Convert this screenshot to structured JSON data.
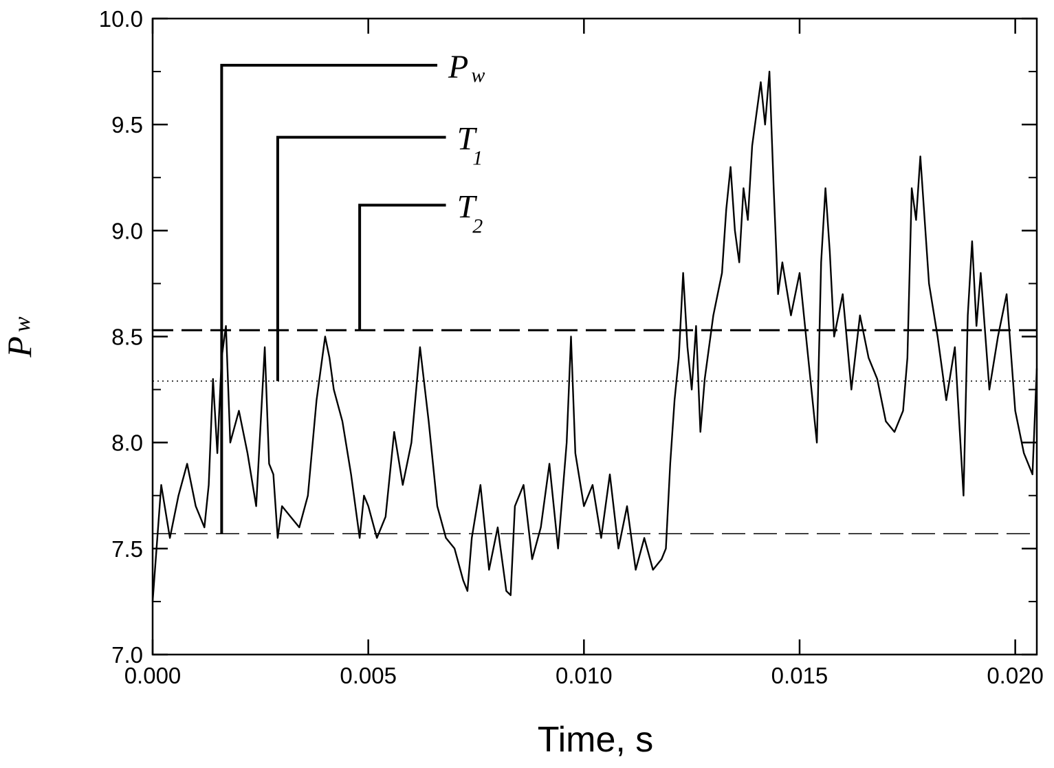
{
  "chart_data": {
    "type": "line",
    "title": "",
    "xlabel": "Time, s",
    "ylabel": {
      "main": "P",
      "sub": "w"
    },
    "xlim": [
      0.0,
      0.0205
    ],
    "ylim": [
      7.0,
      10.0
    ],
    "grid": false,
    "x_ticks": [
      0.0,
      0.005,
      0.01,
      0.015,
      0.02
    ],
    "x_tick_labels": [
      "0.000",
      "0.005",
      "0.010",
      "0.015",
      "0.020"
    ],
    "y_ticks": [
      7.0,
      7.5,
      8.0,
      8.5,
      9.0,
      9.5,
      10.0
    ],
    "y_tick_labels": [
      "7.0",
      "7.5",
      "8.0",
      "8.5",
      "9.0",
      "9.5",
      "10.0"
    ],
    "y_minor_ticks": [
      7.25,
      7.75,
      8.25,
      8.75,
      9.25,
      9.75
    ],
    "reference_lines": [
      {
        "style": "dashed",
        "y": 8.53
      },
      {
        "style": "dotted",
        "y": 8.29
      },
      {
        "style": "long-dashed",
        "y": 7.57
      }
    ],
    "annotations": [
      {
        "main": "P",
        "sub": "w",
        "x": 0.0016,
        "y_bottom": 7.57,
        "y_top": 9.78,
        "x_end": 0.0066
      },
      {
        "main": "T",
        "sub": "1",
        "x": 0.0029,
        "y_bottom": 8.29,
        "y_top": 9.44,
        "x_end": 0.0068
      },
      {
        "main": "T",
        "sub": "2",
        "x": 0.0048,
        "y_bottom": 8.53,
        "y_top": 9.12,
        "x_end": 0.0068
      }
    ],
    "series": [
      {
        "x": [
          0.0,
          0.0002,
          0.0004,
          0.0006,
          0.0008,
          0.001,
          0.0012,
          0.0013,
          0.0014,
          0.0015,
          0.0016,
          0.0017,
          0.0018,
          0.002,
          0.0022,
          0.0024,
          0.0026,
          0.0027,
          0.0028,
          0.0029,
          0.003,
          0.0032,
          0.0034,
          0.0036,
          0.0038,
          0.004,
          0.0041,
          0.0042,
          0.0044,
          0.0046,
          0.0048,
          0.0049,
          0.005,
          0.0052,
          0.0054,
          0.0056,
          0.0058,
          0.006,
          0.0062,
          0.0064,
          0.0066,
          0.0068,
          0.007,
          0.0072,
          0.0073,
          0.0074,
          0.0076,
          0.0078,
          0.008,
          0.0082,
          0.0083,
          0.0084,
          0.0086,
          0.0088,
          0.009,
          0.0092,
          0.0094,
          0.0096,
          0.0097,
          0.0098,
          0.01,
          0.0102,
          0.0104,
          0.0106,
          0.0108,
          0.011,
          0.0112,
          0.0114,
          0.0116,
          0.0118,
          0.0119,
          0.012,
          0.0121,
          0.0122,
          0.0123,
          0.0124,
          0.0125,
          0.0126,
          0.0127,
          0.0128,
          0.013,
          0.0132,
          0.0133,
          0.0134,
          0.0135,
          0.0136,
          0.0137,
          0.0138,
          0.0139,
          0.014,
          0.0141,
          0.0142,
          0.0143,
          0.0144,
          0.0145,
          0.0146,
          0.0148,
          0.015,
          0.0152,
          0.0154,
          0.0155,
          0.0156,
          0.0157,
          0.0158,
          0.016,
          0.0162,
          0.0164,
          0.0166,
          0.0168,
          0.017,
          0.0172,
          0.0174,
          0.0175,
          0.0176,
          0.0177,
          0.0178,
          0.018,
          0.0182,
          0.0184,
          0.0186,
          0.0188,
          0.0189,
          0.019,
          0.0191,
          0.0192,
          0.0194,
          0.0196,
          0.0198,
          0.02,
          0.0202,
          0.0204,
          0.0205
        ],
        "y": [
          7.25,
          7.8,
          7.55,
          7.75,
          7.9,
          7.7,
          7.6,
          7.8,
          8.3,
          7.95,
          8.4,
          8.55,
          8.0,
          8.15,
          7.95,
          7.7,
          8.45,
          7.9,
          7.85,
          7.55,
          7.7,
          7.65,
          7.6,
          7.75,
          8.2,
          8.5,
          8.4,
          8.25,
          8.1,
          7.85,
          7.55,
          7.75,
          7.7,
          7.55,
          7.65,
          8.05,
          7.8,
          8.0,
          8.45,
          8.1,
          7.7,
          7.55,
          7.5,
          7.35,
          7.3,
          7.55,
          7.8,
          7.4,
          7.6,
          7.3,
          7.28,
          7.7,
          7.8,
          7.45,
          7.6,
          7.9,
          7.5,
          8.0,
          8.5,
          7.95,
          7.7,
          7.8,
          7.55,
          7.85,
          7.5,
          7.7,
          7.4,
          7.55,
          7.4,
          7.45,
          7.5,
          7.9,
          8.2,
          8.4,
          8.8,
          8.45,
          8.25,
          8.55,
          8.05,
          8.3,
          8.6,
          8.8,
          9.1,
          9.3,
          9.0,
          8.85,
          9.2,
          9.05,
          9.4,
          9.55,
          9.7,
          9.5,
          9.75,
          9.2,
          8.7,
          8.85,
          8.6,
          8.8,
          8.4,
          8.0,
          8.85,
          9.2,
          8.9,
          8.5,
          8.7,
          8.25,
          8.6,
          8.4,
          8.3,
          8.1,
          8.05,
          8.15,
          8.4,
          9.2,
          9.05,
          9.35,
          8.75,
          8.5,
          8.2,
          8.45,
          7.75,
          8.6,
          8.95,
          8.55,
          8.8,
          8.25,
          8.5,
          8.7,
          8.15,
          7.95,
          7.85,
          8.35
        ]
      }
    ]
  }
}
